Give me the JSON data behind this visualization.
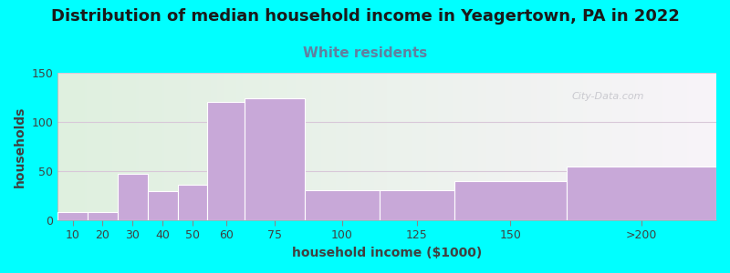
{
  "title": "Distribution of median household income in Yeagertown, PA in 2022",
  "subtitle": "White residents",
  "xlabel": "household income ($1000)",
  "ylabel": "households",
  "title_fontsize": 13,
  "subtitle_fontsize": 11,
  "label_fontsize": 10,
  "tick_fontsize": 9,
  "background_outer": "#00FFFF",
  "background_inner_left": "#dff0df",
  "background_inner_right": "#f5f0f8",
  "bar_color": "#c8a8d8",
  "bar_edge_color": "#ffffff",
  "subtitle_color": "#6080a0",
  "title_color": "#1a1a1a",
  "label_color": "#404040",
  "tick_color": "#404040",
  "grid_color": "#d8c8d8",
  "watermark": "City-Data.com",
  "bin_edges": [
    5,
    15,
    25,
    35,
    45,
    55,
    67.5,
    87.5,
    112.5,
    137.5,
    175,
    225
  ],
  "bin_labels": [
    "10",
    "20",
    "30",
    "40",
    "50",
    "60",
    "75",
    "100",
    "125",
    "150",
    ">200"
  ],
  "values": [
    8,
    8,
    47,
    30,
    36,
    120,
    124,
    31,
    31,
    40,
    55
  ],
  "ylim": [
    0,
    150
  ],
  "yticks": [
    0,
    50,
    100,
    150
  ]
}
